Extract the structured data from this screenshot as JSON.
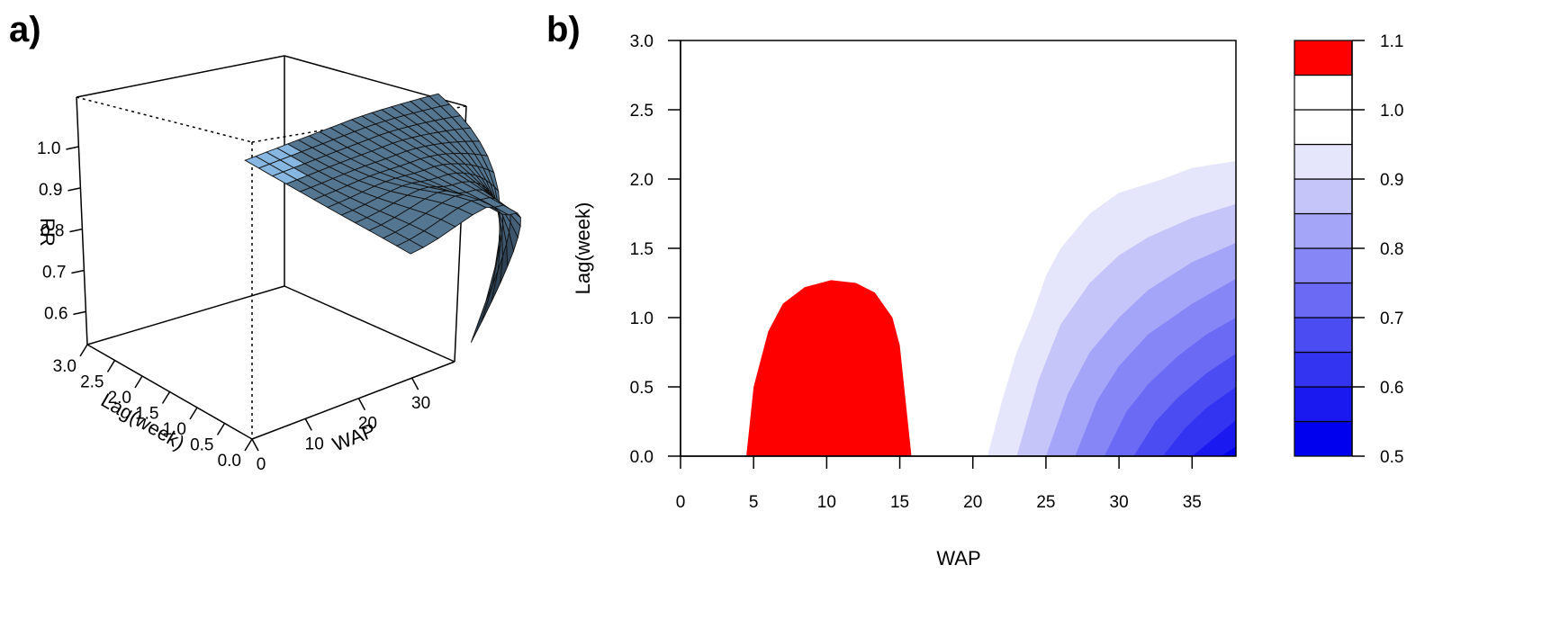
{
  "panel_labels": {
    "a": "a)",
    "b": "b)"
  },
  "chart_data": [
    {
      "panel": "a",
      "type": "surface",
      "zlabel": "RR",
      "xlabel": "WAP",
      "ylabel": "Lag(week)",
      "x_ticks": [
        "0",
        "10",
        "20",
        "30"
      ],
      "y_ticks": [
        "0.0",
        "0.5",
        "1.0",
        "1.5",
        "2.0",
        "2.5",
        "3.0"
      ],
      "z_ticks": [
        "0.6",
        "0.7",
        "0.8",
        "0.9",
        "1.0"
      ],
      "x_range": [
        0,
        38
      ],
      "y_range": [
        0,
        3
      ],
      "z_range": [
        0.52,
        1.12
      ],
      "surface_color": "#87b7e0",
      "surface_shadow_color": "#1c2b38"
    },
    {
      "panel": "b",
      "type": "contour",
      "xlabel": "WAP",
      "ylabel": "Lag(week)",
      "x_ticks": [
        "0",
        "5",
        "10",
        "15",
        "20",
        "25",
        "30",
        "35"
      ],
      "y_ticks": [
        "0.0",
        "0.5",
        "1.0",
        "1.5",
        "2.0",
        "2.5",
        "3.0"
      ],
      "xlim": [
        0,
        38
      ],
      "ylim": [
        0,
        3
      ],
      "regions": [
        {
          "level": [
            1.05,
            1.1
          ],
          "color": "#ff0000",
          "boundary": [
            [
              4.5,
              0.0
            ],
            [
              5.0,
              0.5
            ],
            [
              6.0,
              0.9
            ],
            [
              7.0,
              1.1
            ],
            [
              8.5,
              1.22
            ],
            [
              10.3,
              1.27
            ],
            [
              12.0,
              1.25
            ],
            [
              13.3,
              1.18
            ],
            [
              14.5,
              1.0
            ],
            [
              15.0,
              0.8
            ],
            [
              15.8,
              0.0
            ]
          ]
        },
        {
          "level": [
            0.9,
            0.95
          ],
          "color": "#e5e5fc",
          "start_x": 21.0,
          "edge": [
            [
              21.0,
              0.0
            ],
            [
              22.0,
              0.4
            ],
            [
              23.0,
              0.75
            ],
            [
              24.0,
              1.0
            ],
            [
              25.0,
              1.3
            ],
            [
              26.0,
              1.5
            ],
            [
              28.0,
              1.75
            ],
            [
              30.0,
              1.9
            ],
            [
              33.0,
              2.0
            ],
            [
              35.0,
              2.08
            ],
            [
              38.0,
              2.13
            ]
          ]
        },
        {
          "level": [
            0.85,
            0.9
          ],
          "color": "#c5c5fa",
          "start_x": 23.0,
          "edge": [
            [
              23.0,
              0.0
            ],
            [
              24.5,
              0.55
            ],
            [
              26.0,
              0.95
            ],
            [
              28.0,
              1.25
            ],
            [
              30.0,
              1.45
            ],
            [
              32.0,
              1.58
            ],
            [
              35.0,
              1.72
            ],
            [
              38.0,
              1.82
            ]
          ]
        },
        {
          "level": [
            0.8,
            0.85
          ],
          "color": "#a4a4f8",
          "start_x": 25.0,
          "edge": [
            [
              25.0,
              0.0
            ],
            [
              26.5,
              0.45
            ],
            [
              28.0,
              0.75
            ],
            [
              30.0,
              1.0
            ],
            [
              32.0,
              1.2
            ],
            [
              35.0,
              1.4
            ],
            [
              38.0,
              1.54
            ]
          ]
        },
        {
          "level": [
            0.75,
            0.8
          ],
          "color": "#8686f6",
          "start_x": 27.0,
          "edge": [
            [
              27.0,
              0.0
            ],
            [
              28.5,
              0.4
            ],
            [
              30.0,
              0.65
            ],
            [
              32.0,
              0.88
            ],
            [
              35.0,
              1.1
            ],
            [
              38.0,
              1.28
            ]
          ]
        },
        {
          "level": [
            0.7,
            0.75
          ],
          "color": "#6a6af4",
          "start_x": 29.0,
          "edge": [
            [
              29.0,
              0.0
            ],
            [
              30.5,
              0.32
            ],
            [
              32.0,
              0.52
            ],
            [
              34.0,
              0.72
            ],
            [
              36.0,
              0.88
            ],
            [
              38.0,
              1.0
            ]
          ]
        },
        {
          "level": [
            0.65,
            0.7
          ],
          "color": "#4c4cf3",
          "start_x": 31.0,
          "edge": [
            [
              31.0,
              0.0
            ],
            [
              32.5,
              0.25
            ],
            [
              34.0,
              0.42
            ],
            [
              36.0,
              0.6
            ],
            [
              38.0,
              0.74
            ]
          ]
        },
        {
          "level": [
            0.6,
            0.65
          ],
          "color": "#3333f2",
          "start_x": 33.0,
          "edge": [
            [
              33.0,
              0.0
            ],
            [
              34.5,
              0.2
            ],
            [
              36.0,
              0.35
            ],
            [
              38.0,
              0.5
            ]
          ]
        },
        {
          "level": [
            0.55,
            0.6
          ],
          "color": "#1a1af0",
          "start_x": 35.0,
          "edge": [
            [
              35.0,
              0.0
            ],
            [
              36.5,
              0.13
            ],
            [
              38.0,
              0.26
            ]
          ]
        },
        {
          "level": [
            0.5,
            0.55
          ],
          "color": "#0000ee",
          "start_x": 37.0,
          "edge": [
            [
              37.0,
              0.0
            ],
            [
              38.0,
              0.07
            ]
          ]
        }
      ],
      "legend": {
        "ticks": [
          "0.5",
          "0.6",
          "0.7",
          "0.8",
          "0.9",
          "1.0",
          "1.1"
        ],
        "range": [
          0.5,
          1.1
        ],
        "bands": [
          {
            "from": 0.5,
            "to": 0.55,
            "color": "#0000ee"
          },
          {
            "from": 0.55,
            "to": 0.6,
            "color": "#1a1af0"
          },
          {
            "from": 0.6,
            "to": 0.65,
            "color": "#3333f2"
          },
          {
            "from": 0.65,
            "to": 0.7,
            "color": "#4c4cf3"
          },
          {
            "from": 0.7,
            "to": 0.75,
            "color": "#6a6af4"
          },
          {
            "from": 0.75,
            "to": 0.8,
            "color": "#8686f6"
          },
          {
            "from": 0.8,
            "to": 0.85,
            "color": "#a4a4f8"
          },
          {
            "from": 0.85,
            "to": 0.9,
            "color": "#c5c5fa"
          },
          {
            "from": 0.9,
            "to": 0.95,
            "color": "#e5e5fc"
          },
          {
            "from": 0.95,
            "to": 1.0,
            "color": "#ffffff"
          },
          {
            "from": 1.0,
            "to": 1.05,
            "color": "#ffffff"
          },
          {
            "from": 1.05,
            "to": 1.1,
            "color": "#ff0000"
          }
        ]
      }
    }
  ]
}
